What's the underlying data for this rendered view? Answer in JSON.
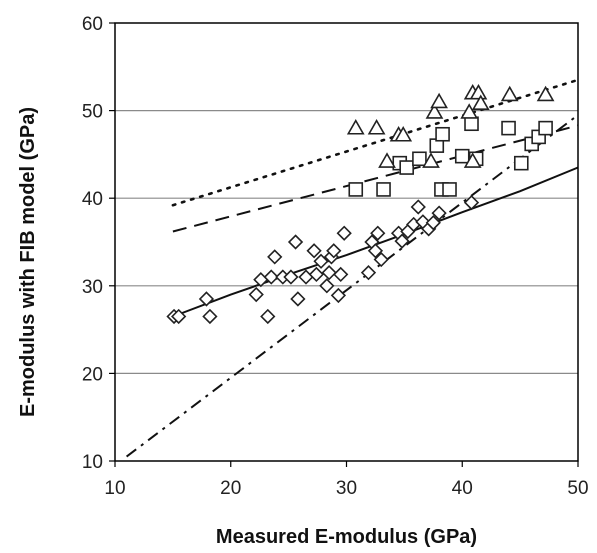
{
  "chart_data": {
    "type": "scatter",
    "xlabel": "Measured E-modulus (GPa)",
    "ylabel": "E-modulus with FIB model (GPa)",
    "xlim": [
      10,
      50
    ],
    "ylim": [
      10,
      60
    ],
    "xticks": [
      10,
      20,
      30,
      40,
      50
    ],
    "yticks": [
      10,
      20,
      30,
      40,
      50,
      60
    ],
    "grid": "horizontal",
    "series": [
      {
        "marker": "diamond",
        "points": [
          [
            15.1,
            26.5
          ],
          [
            15.5,
            26.5
          ],
          [
            17.9,
            28.5
          ],
          [
            18.2,
            26.5
          ],
          [
            22.2,
            29.0
          ],
          [
            22.6,
            30.7
          ],
          [
            23.2,
            26.5
          ],
          [
            23.5,
            31.0
          ],
          [
            23.8,
            33.3
          ],
          [
            24.5,
            31.0
          ],
          [
            25.2,
            31.0
          ],
          [
            25.6,
            35.0
          ],
          [
            25.8,
            28.5
          ],
          [
            26.5,
            31.0
          ],
          [
            27.2,
            34.0
          ],
          [
            27.4,
            31.3
          ],
          [
            27.8,
            32.8
          ],
          [
            28.3,
            30.0
          ],
          [
            28.5,
            31.5
          ],
          [
            28.7,
            33.3
          ],
          [
            28.9,
            34.0
          ],
          [
            29.3,
            28.9
          ],
          [
            29.5,
            31.3
          ],
          [
            29.8,
            36.0
          ],
          [
            31.9,
            31.5
          ],
          [
            32.2,
            35.0
          ],
          [
            32.5,
            34.0
          ],
          [
            32.7,
            36.0
          ],
          [
            33.0,
            33.0
          ],
          [
            34.5,
            36.0
          ],
          [
            34.8,
            35.1
          ],
          [
            35.3,
            36.2
          ],
          [
            35.8,
            37.0
          ],
          [
            36.2,
            39.0
          ],
          [
            36.6,
            37.3
          ],
          [
            37.1,
            36.5
          ],
          [
            37.5,
            37.2
          ],
          [
            38.0,
            38.3
          ],
          [
            40.8,
            39.5
          ]
        ]
      },
      {
        "marker": "square",
        "points": [
          [
            30.8,
            41.0
          ],
          [
            33.2,
            41.0
          ],
          [
            34.6,
            44.0
          ],
          [
            35.2,
            43.5
          ],
          [
            36.3,
            44.5
          ],
          [
            37.8,
            46.0
          ],
          [
            38.2,
            41.0
          ],
          [
            38.9,
            41.0
          ],
          [
            38.3,
            47.3
          ],
          [
            40.0,
            44.8
          ],
          [
            40.8,
            48.5
          ],
          [
            41.2,
            44.5
          ],
          [
            44.0,
            48.0
          ],
          [
            45.1,
            44.0
          ],
          [
            46.0,
            46.2
          ],
          [
            46.6,
            47.0
          ],
          [
            47.2,
            48.0
          ]
        ]
      },
      {
        "marker": "triangle",
        "points": [
          [
            30.8,
            48.0
          ],
          [
            32.6,
            48.0
          ],
          [
            33.5,
            44.2
          ],
          [
            34.5,
            47.2
          ],
          [
            34.9,
            47.2
          ],
          [
            37.3,
            44.2
          ],
          [
            37.6,
            49.8
          ],
          [
            38.0,
            51.0
          ],
          [
            40.6,
            49.8
          ],
          [
            40.9,
            44.2
          ],
          [
            40.9,
            52.0
          ],
          [
            41.4,
            52.0
          ],
          [
            41.6,
            50.8
          ],
          [
            44.1,
            51.8
          ],
          [
            47.2,
            51.8
          ]
        ]
      }
    ],
    "lines": [
      {
        "style": "dotted",
        "x": [
          15,
          50
        ],
        "y": [
          39.2,
          53.5
        ]
      },
      {
        "style": "dashed",
        "x": [
          15,
          50
        ],
        "y": [
          36.2,
          48.3
        ]
      },
      {
        "style": "solid",
        "x": [
          15,
          20,
          25,
          30,
          35,
          40,
          45,
          50
        ],
        "y": [
          26.5,
          29.0,
          31.3,
          33.5,
          35.9,
          38.4,
          40.8,
          43.5
        ]
      },
      {
        "style": "dash-dot",
        "x": [
          11,
          50
        ],
        "y": [
          10.5,
          49.5
        ]
      }
    ]
  }
}
